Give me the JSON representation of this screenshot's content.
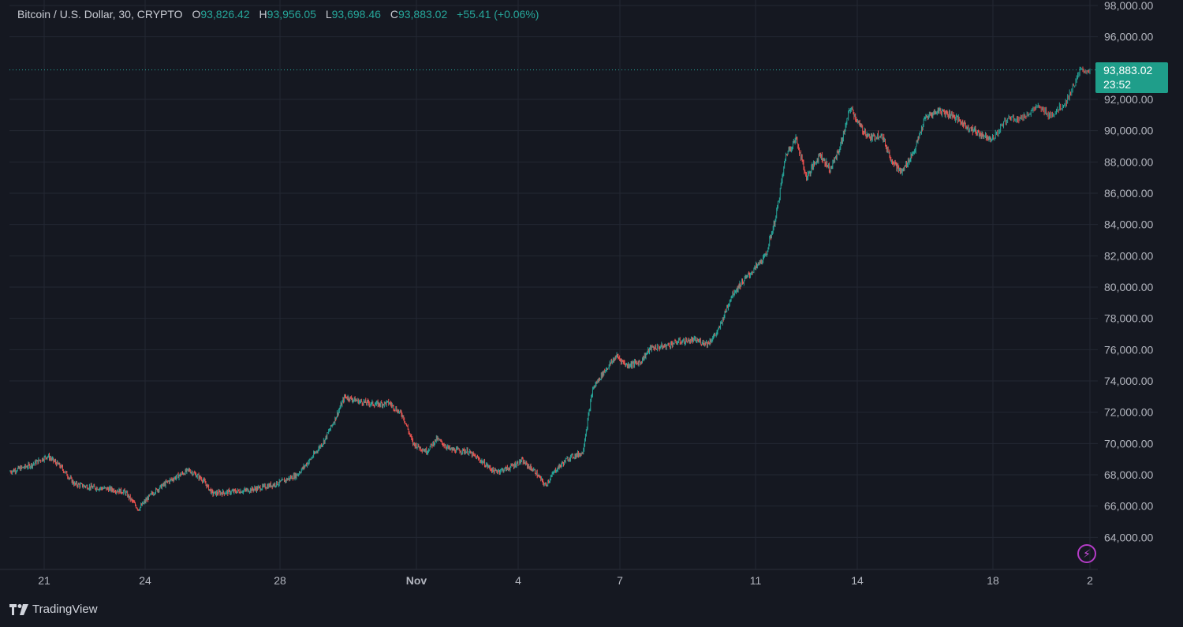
{
  "legend": {
    "symbol": "Bitcoin / U.S. Dollar, 30, CRYPTO",
    "open_label": "O",
    "open": "93,826.42",
    "high_label": "H",
    "high": "93,956.05",
    "low_label": "L",
    "low": "93,698.46",
    "close_label": "C",
    "close": "93,883.02",
    "change": "+55.41 (+0.06%)"
  },
  "last_price": {
    "price": "93,883.02",
    "countdown": "23:52"
  },
  "branding": {
    "name": "TradingView",
    "icon": "tradingview-logo-icon"
  },
  "alert_icon": "lightning-bolt-icon",
  "colors": {
    "up": "#26a69a",
    "down": "#ef5350",
    "background": "#151821",
    "grid": "#232733",
    "tag": "#1f9e8a"
  },
  "chart_data": {
    "type": "candlestick",
    "instrument": "Bitcoin / U.S. Dollar",
    "interval": "30",
    "ylim": [
      62000,
      98000
    ],
    "y_ticks": [
      98000,
      96000,
      92000,
      90000,
      88000,
      86000,
      84000,
      82000,
      80000,
      78000,
      76000,
      74000,
      72000,
      70000,
      68000,
      66000,
      64000
    ],
    "y_tick_labels": [
      "98,000.00",
      "96,000.00",
      "92,000.00",
      "90,000.00",
      "88,000.00",
      "86,000.00",
      "84,000.00",
      "82,000.00",
      "80,000.00",
      "78,000.00",
      "76,000.00",
      "74,000.00",
      "72,000.00",
      "70,000.00",
      "68,000.00",
      "66,000.00",
      "64,000.00"
    ],
    "x_ticks": [
      {
        "day": 21,
        "label": "21"
      },
      {
        "day": 24,
        "label": "24"
      },
      {
        "day": 28,
        "label": "28"
      },
      {
        "day": 32,
        "label": "Nov"
      },
      {
        "day": 35,
        "label": "4"
      },
      {
        "day": 38,
        "label": "7"
      },
      {
        "day": 42,
        "label": "11"
      },
      {
        "day": 45,
        "label": "14"
      },
      {
        "day": 49,
        "label": "18"
      },
      {
        "day": 51,
        "label": "2"
      }
    ],
    "x_range_days": [
      20.0,
      51.0
    ],
    "grid": true,
    "last_close": 93883.02,
    "price_path": [
      [
        20.0,
        68200
      ],
      [
        20.6,
        68600
      ],
      [
        21.1,
        69200
      ],
      [
        21.5,
        68500
      ],
      [
        21.9,
        67400
      ],
      [
        22.4,
        67200
      ],
      [
        22.9,
        67100
      ],
      [
        23.4,
        66900
      ],
      [
        23.8,
        65800
      ],
      [
        24.2,
        66800
      ],
      [
        24.7,
        67600
      ],
      [
        25.3,
        68300
      ],
      [
        25.7,
        67700
      ],
      [
        26.0,
        66800
      ],
      [
        26.5,
        66900
      ],
      [
        27.0,
        67000
      ],
      [
        27.5,
        67200
      ],
      [
        28.0,
        67500
      ],
      [
        28.5,
        68000
      ],
      [
        28.9,
        69000
      ],
      [
        29.3,
        70200
      ],
      [
        29.6,
        71500
      ],
      [
        29.9,
        73000
      ],
      [
        30.3,
        72700
      ],
      [
        30.8,
        72500
      ],
      [
        31.2,
        72600
      ],
      [
        31.6,
        71800
      ],
      [
        31.9,
        70000
      ],
      [
        32.3,
        69500
      ],
      [
        32.6,
        70300
      ],
      [
        33.0,
        69600
      ],
      [
        33.5,
        69500
      ],
      [
        33.9,
        68900
      ],
      [
        34.3,
        68200
      ],
      [
        34.7,
        68400
      ],
      [
        35.1,
        68900
      ],
      [
        35.5,
        68200
      ],
      [
        35.8,
        67300
      ],
      [
        36.1,
        68300
      ],
      [
        36.5,
        69100
      ],
      [
        36.9,
        69400
      ],
      [
        37.2,
        73500
      ],
      [
        37.5,
        74500
      ],
      [
        37.9,
        75600
      ],
      [
        38.2,
        75000
      ],
      [
        38.6,
        75200
      ],
      [
        38.9,
        76100
      ],
      [
        39.3,
        76200
      ],
      [
        39.7,
        76500
      ],
      [
        40.2,
        76600
      ],
      [
        40.6,
        76400
      ],
      [
        40.9,
        77200
      ],
      [
        41.3,
        79500
      ],
      [
        41.6,
        80300
      ],
      [
        41.9,
        81000
      ],
      [
        42.3,
        82000
      ],
      [
        42.6,
        84500
      ],
      [
        42.9,
        88500
      ],
      [
        43.2,
        89500
      ],
      [
        43.5,
        87000
      ],
      [
        43.9,
        88500
      ],
      [
        44.2,
        87500
      ],
      [
        44.5,
        89000
      ],
      [
        44.8,
        91500
      ],
      [
        45.1,
        90200
      ],
      [
        45.4,
        89500
      ],
      [
        45.7,
        89800
      ],
      [
        46.0,
        88200
      ],
      [
        46.3,
        87300
      ],
      [
        46.7,
        88800
      ],
      [
        47.0,
        90800
      ],
      [
        47.4,
        91300
      ],
      [
        47.8,
        91000
      ],
      [
        48.2,
        90300
      ],
      [
        48.6,
        89800
      ],
      [
        49.0,
        89500
      ],
      [
        49.3,
        90800
      ],
      [
        49.6,
        90800
      ],
      [
        49.9,
        91500
      ],
      [
        50.2,
        91000
      ],
      [
        50.5,
        91800
      ],
      [
        50.8,
        93800
      ],
      [
        51.0,
        93883
      ]
    ]
  }
}
